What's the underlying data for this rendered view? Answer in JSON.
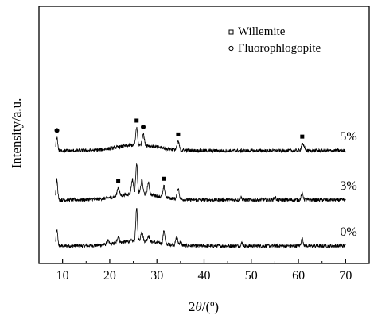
{
  "chart_data": {
    "type": "line",
    "xlabel_prefix": "2",
    "xlabel_theta": "θ",
    "xlabel_suffix": "/(º)",
    "ylabel": "Intensity/a.u.",
    "xlim": [
      5,
      75
    ],
    "x_ticks": [
      10,
      20,
      30,
      40,
      50,
      60,
      70
    ],
    "y_ticks_shown": false,
    "grid": false,
    "legend_position": "top-right",
    "legend": [
      {
        "marker": "square",
        "label": "Willemite"
      },
      {
        "marker": "circle",
        "label": "Fluorophlogopite"
      }
    ],
    "series": [
      {
        "name": "0%",
        "offset": 0,
        "base": 18,
        "noise": 5,
        "hump": {
          "center": 26,
          "width": 6,
          "height": 14
        },
        "peaks": [
          [
            8.8,
            44,
            0.25
          ],
          [
            19.6,
            10,
            0.3
          ],
          [
            21.8,
            18,
            0.3
          ],
          [
            25.7,
            90,
            0.25
          ],
          [
            26.8,
            28,
            0.3
          ],
          [
            28.2,
            16,
            0.3
          ],
          [
            31.5,
            38,
            0.25
          ],
          [
            34.2,
            22,
            0.3
          ],
          [
            35.0,
            10,
            0.3
          ],
          [
            48.0,
            8,
            0.3
          ],
          [
            60.8,
            20,
            0.3
          ]
        ]
      },
      {
        "name": "3%",
        "offset": 58,
        "base": 18,
        "noise": 5,
        "hump": {
          "center": 26,
          "width": 6,
          "height": 18
        },
        "peaks": [
          [
            8.8,
            58,
            0.25
          ],
          [
            21.8,
            24,
            0.3
          ],
          [
            24.8,
            40,
            0.3
          ],
          [
            25.7,
            86,
            0.25
          ],
          [
            26.8,
            38,
            0.3
          ],
          [
            28.2,
            32,
            0.3
          ],
          [
            31.5,
            30,
            0.25
          ],
          [
            34.5,
            30,
            0.3
          ],
          [
            47.8,
            8,
            0.3
          ],
          [
            55.0,
            8,
            0.3
          ],
          [
            60.8,
            18,
            0.3
          ]
        ]
      },
      {
        "name": "5%",
        "offset": 120,
        "base": 18,
        "noise": 5,
        "hump": {
          "center": 26,
          "width": 6,
          "height": 16
        },
        "peaks": [
          [
            8.8,
            38,
            0.25
          ],
          [
            25.7,
            50,
            0.25
          ],
          [
            27.1,
            32,
            0.3
          ],
          [
            34.5,
            24,
            0.3
          ],
          [
            60.8,
            18,
            0.3
          ],
          [
            61.3,
            8,
            0.3
          ]
        ]
      }
    ],
    "peak_markers": [
      {
        "x": 8.8,
        "type": "circle",
        "series": "5%"
      },
      {
        "x": 25.7,
        "type": "square",
        "series": "5%"
      },
      {
        "x": 27.1,
        "type": "circle",
        "series": "5%"
      },
      {
        "x": 34.5,
        "type": "square",
        "series": "5%"
      },
      {
        "x": 60.8,
        "type": "square",
        "series": "5%"
      },
      {
        "x": 21.8,
        "type": "square",
        "series": "3%"
      },
      {
        "x": 31.5,
        "type": "square",
        "series": "3%"
      }
    ]
  }
}
